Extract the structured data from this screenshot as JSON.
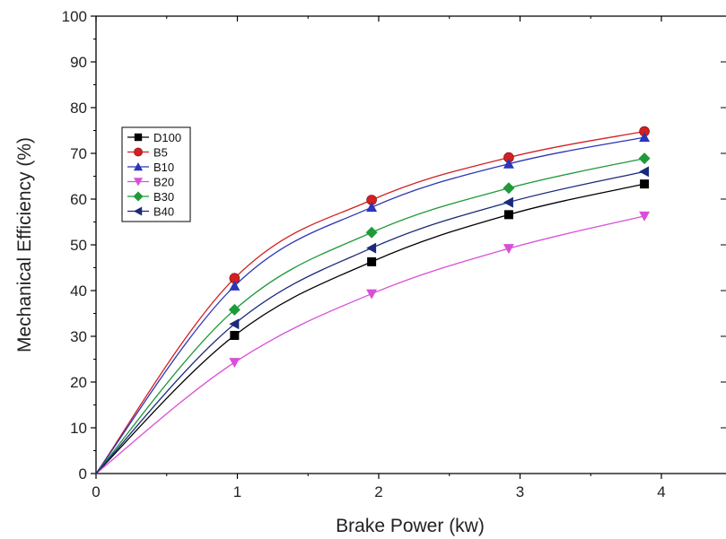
{
  "chart_data": {
    "type": "line",
    "xlabel": "Brake Power (kw)",
    "ylabel": "Mechanical Efficiency (%)",
    "xlim": [
      0,
      4.5
    ],
    "ylim": [
      0,
      100
    ],
    "x_ticks": [
      "0",
      "1",
      "2",
      "3",
      "4"
    ],
    "y_ticks": [
      "0",
      "10",
      "20",
      "30",
      "40",
      "50",
      "60",
      "70",
      "80",
      "90",
      "100"
    ],
    "grid": false,
    "legend_position": "top-left",
    "series": [
      {
        "name": "D100",
        "color": "#000000",
        "marker": "square",
        "x": [
          0,
          0.98,
          1.95,
          2.92,
          3.88
        ],
        "y": [
          0,
          30.2,
          46.3,
          56.6,
          63.3
        ]
      },
      {
        "name": "B5",
        "color": "#d42020",
        "marker": "circle",
        "x": [
          0,
          0.98,
          1.95,
          2.92,
          3.88
        ],
        "y": [
          0,
          42.7,
          59.8,
          69.1,
          74.8
        ]
      },
      {
        "name": "B10",
        "color": "#2b36b8",
        "marker": "triangle-up",
        "x": [
          0,
          0.98,
          1.95,
          2.92,
          3.88
        ],
        "y": [
          0,
          41.0,
          58.2,
          67.7,
          73.5
        ]
      },
      {
        "name": "B20",
        "color": "#d94fd9",
        "marker": "triangle-down",
        "x": [
          0,
          0.98,
          1.95,
          2.92,
          3.88
        ],
        "y": [
          0,
          24.3,
          39.3,
          49.2,
          56.3
        ]
      },
      {
        "name": "B30",
        "color": "#1e9a3a",
        "marker": "diamond",
        "x": [
          0,
          0.98,
          1.95,
          2.92,
          3.88
        ],
        "y": [
          0,
          35.8,
          52.7,
          62.4,
          68.9
        ]
      },
      {
        "name": "B40",
        "color": "#1a2a7a",
        "marker": "triangle-left",
        "x": [
          0,
          0.98,
          1.95,
          2.92,
          3.88
        ],
        "y": [
          0,
          32.7,
          49.3,
          59.3,
          66.0
        ]
      }
    ]
  }
}
